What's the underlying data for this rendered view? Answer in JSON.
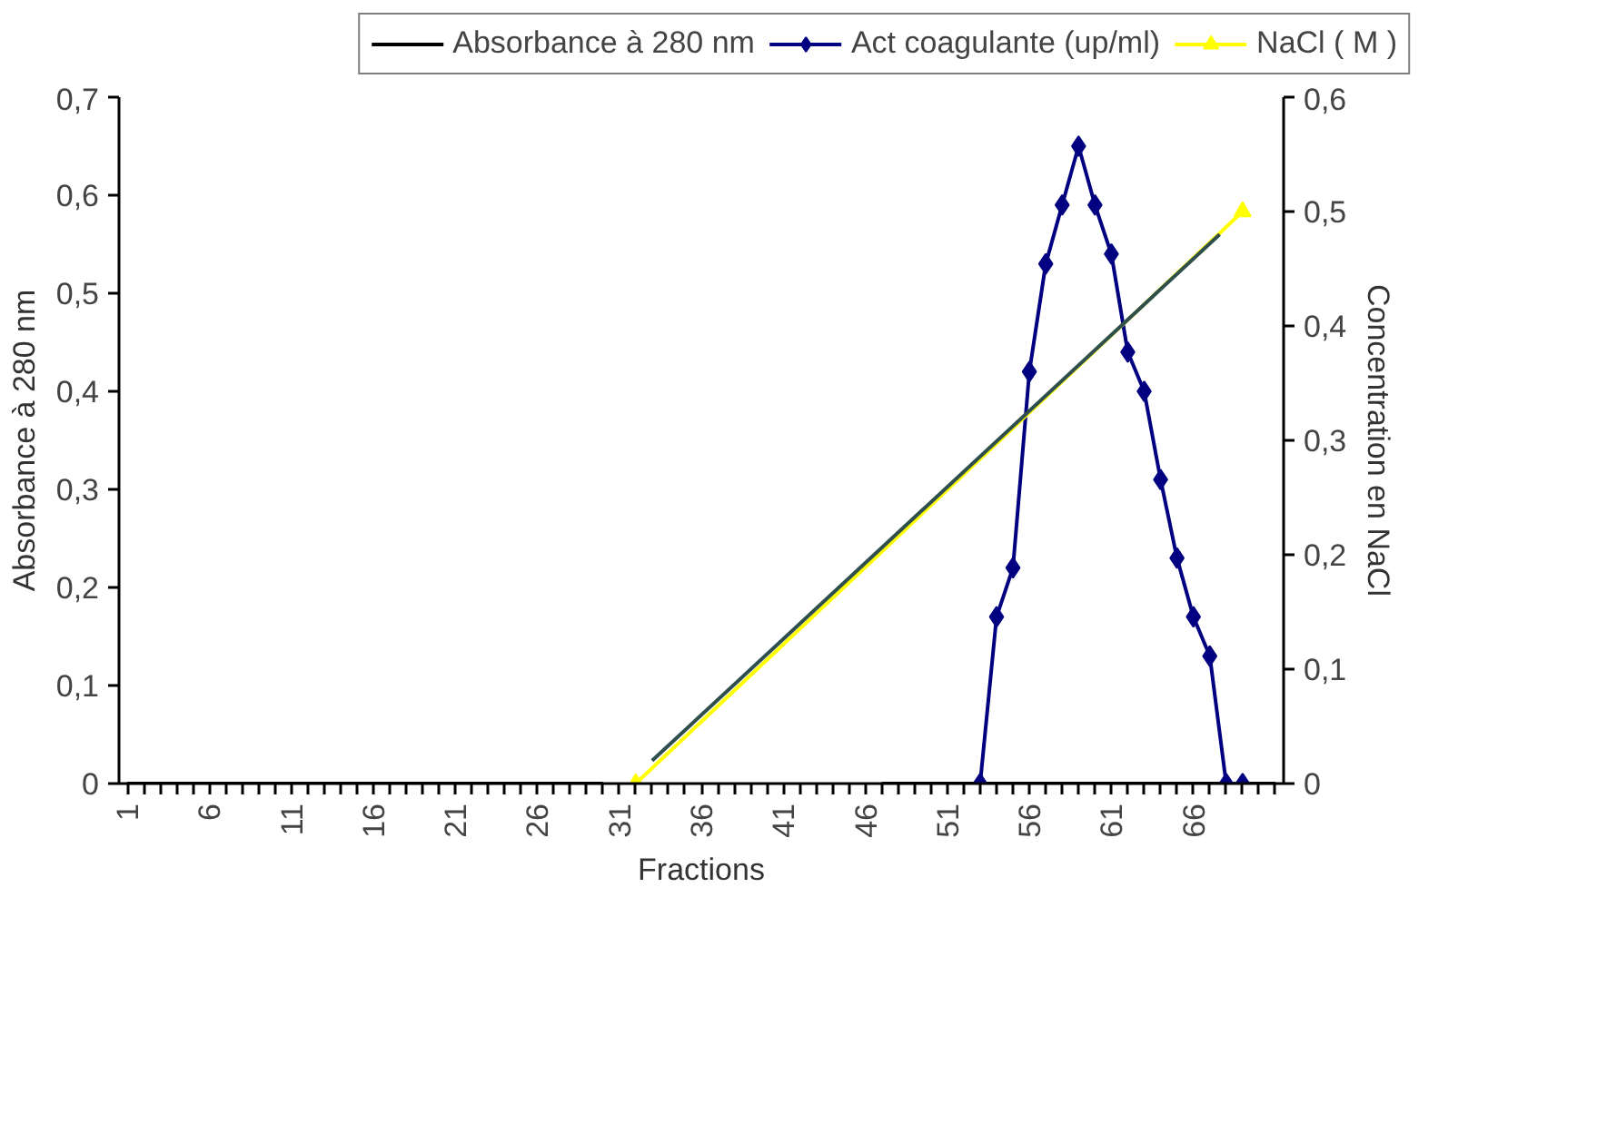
{
  "chart_data": {
    "type": "line",
    "xlabel": "Fractions",
    "ylabel": "Absorbance à 280 nm",
    "y2label": "Concentration en NaCl",
    "xlim": [
      0.5,
      71.5
    ],
    "xticks": [
      {
        "value": 1,
        "label": "1"
      },
      {
        "value": 2,
        "label": null
      },
      {
        "value": 3,
        "label": null
      },
      {
        "value": 4,
        "label": null
      },
      {
        "value": 5,
        "label": null
      },
      {
        "value": 6,
        "label": "6"
      },
      {
        "value": 7,
        "label": null
      },
      {
        "value": 8,
        "label": null
      },
      {
        "value": 9,
        "label": null
      },
      {
        "value": 10,
        "label": null
      },
      {
        "value": 11,
        "label": "11"
      },
      {
        "value": 12,
        "label": null
      },
      {
        "value": 13,
        "label": null
      },
      {
        "value": 14,
        "label": null
      },
      {
        "value": 15,
        "label": null
      },
      {
        "value": 16,
        "label": "16"
      },
      {
        "value": 17,
        "label": null
      },
      {
        "value": 18,
        "label": null
      },
      {
        "value": 19,
        "label": null
      },
      {
        "value": 20,
        "label": null
      },
      {
        "value": 21,
        "label": "21"
      },
      {
        "value": 22,
        "label": null
      },
      {
        "value": 23,
        "label": null
      },
      {
        "value": 24,
        "label": null
      },
      {
        "value": 25,
        "label": null
      },
      {
        "value": 26,
        "label": "26"
      },
      {
        "value": 27,
        "label": null
      },
      {
        "value": 28,
        "label": null
      },
      {
        "value": 29,
        "label": null
      },
      {
        "value": 30,
        "label": null
      },
      {
        "value": 31,
        "label": "31"
      },
      {
        "value": 32,
        "label": null
      },
      {
        "value": 33,
        "label": null
      },
      {
        "value": 34,
        "label": null
      },
      {
        "value": 35,
        "label": null
      },
      {
        "value": 36,
        "label": "36"
      },
      {
        "value": 37,
        "label": null
      },
      {
        "value": 38,
        "label": null
      },
      {
        "value": 39,
        "label": null
      },
      {
        "value": 40,
        "label": null
      },
      {
        "value": 41,
        "label": "41"
      },
      {
        "value": 42,
        "label": null
      },
      {
        "value": 43,
        "label": null
      },
      {
        "value": 44,
        "label": null
      },
      {
        "value": 45,
        "label": null
      },
      {
        "value": 46,
        "label": "46"
      },
      {
        "value": 47,
        "label": null
      },
      {
        "value": 48,
        "label": null
      },
      {
        "value": 49,
        "label": null
      },
      {
        "value": 50,
        "label": null
      },
      {
        "value": 51,
        "label": "51"
      },
      {
        "value": 52,
        "label": null
      },
      {
        "value": 53,
        "label": null
      },
      {
        "value": 54,
        "label": null
      },
      {
        "value": 55,
        "label": null
      },
      {
        "value": 56,
        "label": "56"
      },
      {
        "value": 57,
        "label": null
      },
      {
        "value": 58,
        "label": null
      },
      {
        "value": 59,
        "label": null
      },
      {
        "value": 60,
        "label": null
      },
      {
        "value": 61,
        "label": "61"
      },
      {
        "value": 62,
        "label": null
      },
      {
        "value": 63,
        "label": null
      },
      {
        "value": 64,
        "label": null
      },
      {
        "value": 65,
        "label": null
      },
      {
        "value": 66,
        "label": "66"
      },
      {
        "value": 67,
        "label": null
      },
      {
        "value": 68,
        "label": null
      },
      {
        "value": 69,
        "label": null
      },
      {
        "value": 70,
        "label": null
      },
      {
        "value": 71,
        "label": null
      }
    ],
    "ylim": [
      0,
      0.7
    ],
    "yticks": [
      0,
      {
        "value": 0.1,
        "label": "0,1"
      },
      {
        "value": 0.2,
        "label": "0,2"
      },
      {
        "value": 0.3,
        "label": "0,3"
      },
      {
        "value": 0.4,
        "label": "0,4"
      },
      {
        "value": 0.5,
        "label": "0,5"
      },
      {
        "value": 0.6,
        "label": "0,6"
      },
      {
        "value": 0.7,
        "label": "0,7"
      }
    ],
    "y2lim": [
      0,
      0.6
    ],
    "y2ticks": [
      0,
      {
        "value": 0.1,
        "label": "0,1"
      },
      {
        "value": 0.2,
        "label": "0,2"
      },
      {
        "value": 0.3,
        "label": "0,3"
      },
      {
        "value": 0.4,
        "label": "0,4"
      },
      {
        "value": 0.5,
        "label": "0,5"
      },
      {
        "value": 0.6,
        "label": "0,6"
      }
    ],
    "grid": false,
    "legend": "top",
    "series": [
      {
        "name": "Absorbance à 280 nm",
        "color": "#000000",
        "marker": "none",
        "x": [
          1,
          2,
          3,
          4,
          5,
          6,
          7,
          8,
          9,
          10,
          11,
          12,
          13,
          14,
          15,
          16,
          17,
          18,
          19,
          20,
          21,
          22,
          23,
          24,
          25,
          26,
          27,
          28,
          29,
          30,
          31,
          32,
          33,
          34,
          35,
          36,
          37,
          38,
          39,
          40,
          41,
          42,
          43,
          44,
          45,
          46,
          47,
          48,
          49,
          50,
          51,
          52,
          53,
          54,
          55,
          56,
          57,
          58,
          59,
          60,
          61,
          62,
          63,
          64,
          65,
          66,
          67,
          68,
          69,
          70,
          71
        ],
        "values": [
          0,
          0,
          0,
          0,
          0,
          0,
          0,
          0,
          0,
          0,
          0,
          0,
          0,
          0,
          0,
          0,
          0,
          0,
          0,
          0,
          0,
          0,
          0,
          0,
          0,
          0,
          0,
          0,
          0,
          0,
          null,
          null,
          null,
          null,
          null,
          null,
          null,
          null,
          null,
          null,
          null,
          null,
          null,
          null,
          null,
          null,
          0,
          0,
          0,
          0,
          0,
          0,
          0,
          0,
          0,
          0,
          0,
          0,
          0,
          0,
          0,
          0,
          0,
          0,
          0,
          0,
          0,
          0,
          0,
          0,
          0
        ]
      },
      {
        "name": "Act coagulante (up/ml)",
        "color": "#000080",
        "marker": "diamond",
        "x": [
          53,
          54,
          55,
          56,
          57,
          58,
          59,
          60,
          61,
          62,
          63,
          64,
          65,
          66,
          67,
          68,
          69
        ],
        "values": [
          0,
          0.17,
          0.22,
          0.42,
          0.53,
          0.59,
          0.65,
          0.59,
          0.54,
          0.44,
          0.4,
          0.31,
          0.23,
          0.17,
          0.13,
          0,
          0
        ]
      },
      {
        "name": "NaCl ( M )",
        "color": "#ffff00",
        "marker": "triangle",
        "axis": "y2",
        "x": [
          32,
          69
        ],
        "values": [
          0,
          0.5
        ]
      },
      {
        "color": "#2f4f4f",
        "marker": "none",
        "axis": "y2",
        "x": [
          33,
          67.6
        ],
        "values": [
          0.02,
          0.48
        ]
      }
    ]
  }
}
